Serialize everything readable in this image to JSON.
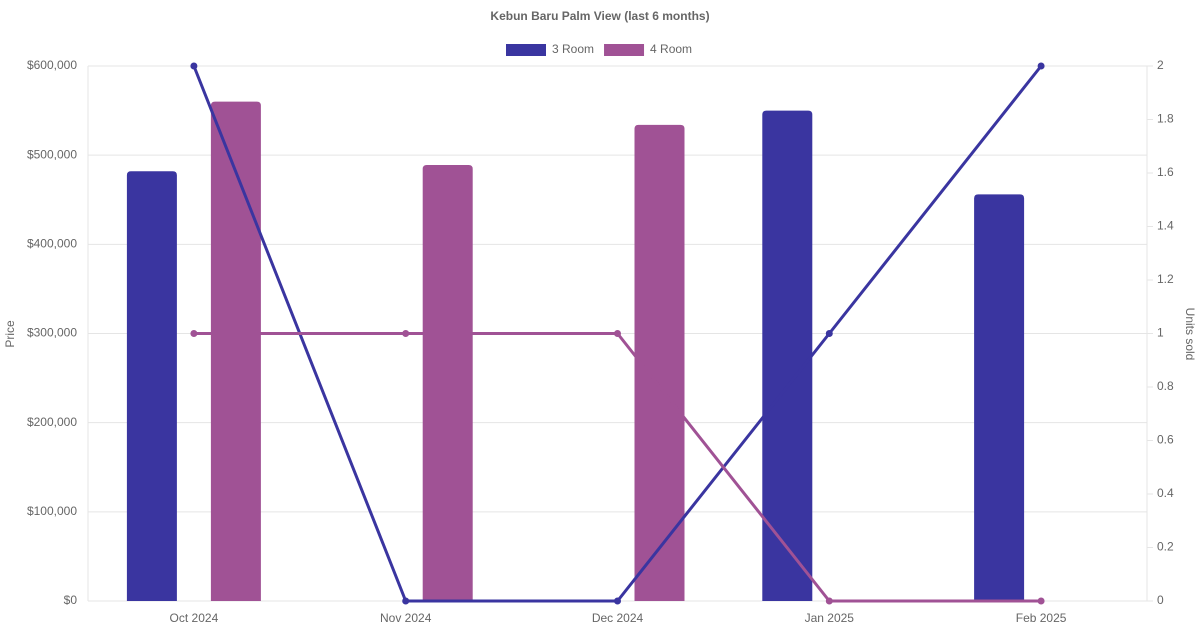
{
  "chart_data": {
    "type": "bar-line",
    "title": "Kebun Baru Palm View (last 6 months)",
    "categories": [
      "Oct 2024",
      "Nov 2024",
      "Dec 2024",
      "Jan 2025",
      "Feb 2025"
    ],
    "y_label": "Price",
    "y2_label": "Units sold",
    "series": [
      {
        "name": "3 Room",
        "color": "#3a35a0",
        "values": [
          482000,
          null,
          null,
          550000,
          456000
        ],
        "units": [
          2,
          0,
          0,
          1,
          2
        ]
      },
      {
        "name": "4 Room",
        "color": "#a05295",
        "values": [
          560000,
          489000,
          534000,
          null,
          null
        ],
        "units": [
          1,
          1,
          1,
          0,
          0
        ]
      }
    ],
    "ylim": [
      0,
      600000
    ],
    "yticks": [
      {
        "value": 0,
        "label": "$0"
      },
      {
        "value": 100000,
        "label": "$100,000"
      },
      {
        "value": 200000,
        "label": "$200,000"
      },
      {
        "value": 300000,
        "label": "$300,000"
      },
      {
        "value": 400000,
        "label": "$400,000"
      },
      {
        "value": 500000,
        "label": "$500,000"
      },
      {
        "value": 600000,
        "label": "$600,000"
      }
    ],
    "y2lim": [
      0,
      2
    ],
    "y2ticks": [
      0,
      0.2,
      0.4,
      0.6,
      0.8,
      1,
      1.2,
      1.4,
      1.6,
      1.8,
      2
    ],
    "grid": true
  }
}
